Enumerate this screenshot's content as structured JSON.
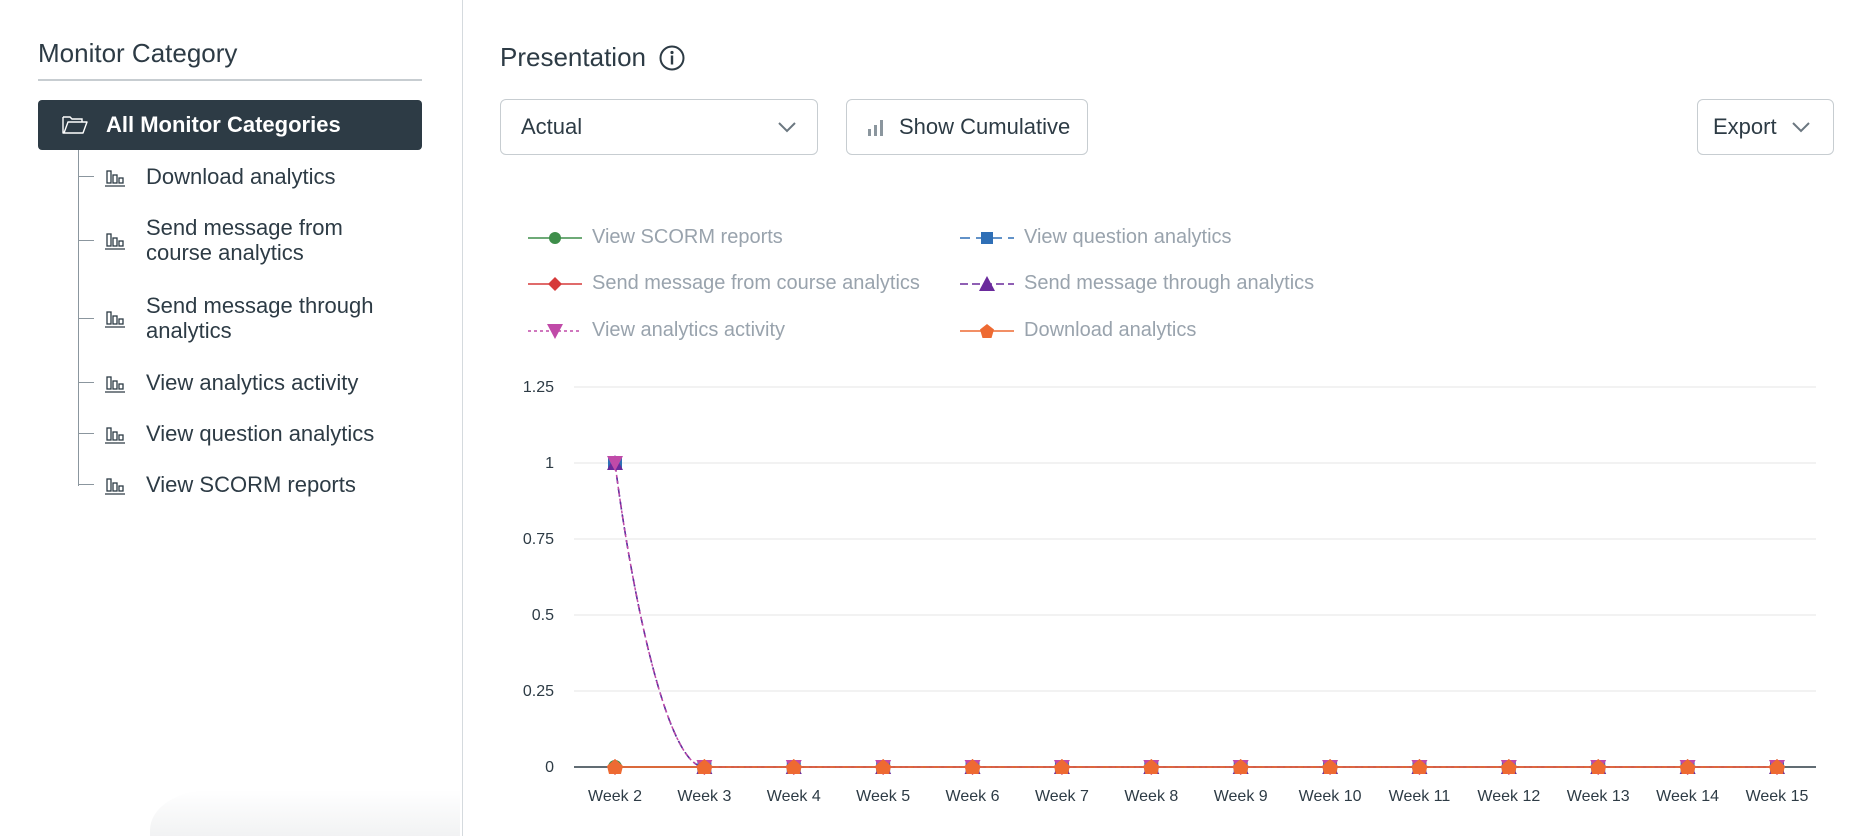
{
  "sidebar": {
    "title": "Monitor Category",
    "all_label": "All Monitor Categories",
    "items": [
      {
        "label": "Download analytics"
      },
      {
        "label": "Send message from course analytics"
      },
      {
        "label": "Send message through analytics"
      },
      {
        "label": "View analytics activity"
      },
      {
        "label": "View question analytics"
      },
      {
        "label": "View SCORM reports"
      }
    ]
  },
  "main": {
    "title": "Presentation",
    "select_value": "Actual",
    "cumulative_label": "Show Cumulative",
    "export_label": "Export"
  },
  "legend": [
    {
      "label": "View SCORM reports",
      "color": "#3e8e4a",
      "marker": "circle",
      "dash": "solid"
    },
    {
      "label": "View question analytics",
      "color": "#2f6fb6",
      "marker": "square",
      "dash": "dashed"
    },
    {
      "label": "Send message from course analytics",
      "color": "#d63a3a",
      "marker": "diamond",
      "dash": "solid"
    },
    {
      "label": "Send message through analytics",
      "color": "#6a2a9c",
      "marker": "triangle",
      "dash": "dashed"
    },
    {
      "label": "View analytics activity",
      "color": "#c04aa8",
      "marker": "triangle-down",
      "dash": "dotted"
    },
    {
      "label": "Download analytics",
      "color": "#ee6a32",
      "marker": "pentagon",
      "dash": "solid"
    }
  ],
  "chart_data": {
    "type": "line",
    "categories": [
      "Week 2",
      "Week 3",
      "Week 4",
      "Week 5",
      "Week 6",
      "Week 7",
      "Week 8",
      "Week 9",
      "Week 10",
      "Week 11",
      "Week 12",
      "Week 13",
      "Week 14",
      "Week 15"
    ],
    "y_ticks": [
      "0",
      "0.25",
      "0.5",
      "0.75",
      "1",
      "1.25"
    ],
    "ylim": [
      0,
      1.25
    ],
    "series": [
      {
        "name": "View SCORM reports",
        "values": [
          0,
          0,
          0,
          0,
          0,
          0,
          0,
          0,
          0,
          0,
          0,
          0,
          0,
          0
        ]
      },
      {
        "name": "View question analytics",
        "values": [
          1,
          0,
          0,
          0,
          0,
          0,
          0,
          0,
          0,
          0,
          0,
          0,
          0,
          0
        ]
      },
      {
        "name": "Send message from course analytics",
        "values": [
          0,
          0,
          0,
          0,
          0,
          0,
          0,
          0,
          0,
          0,
          0,
          0,
          0,
          0
        ]
      },
      {
        "name": "Send message through analytics",
        "values": [
          1,
          0,
          0,
          0,
          0,
          0,
          0,
          0,
          0,
          0,
          0,
          0,
          0,
          0
        ]
      },
      {
        "name": "View analytics activity",
        "values": [
          1,
          0,
          0,
          0,
          0,
          0,
          0,
          0,
          0,
          0,
          0,
          0,
          0,
          0
        ]
      },
      {
        "name": "Download analytics",
        "values": [
          0,
          0,
          0,
          0,
          0,
          0,
          0,
          0,
          0,
          0,
          0,
          0,
          0,
          0
        ]
      }
    ]
  }
}
